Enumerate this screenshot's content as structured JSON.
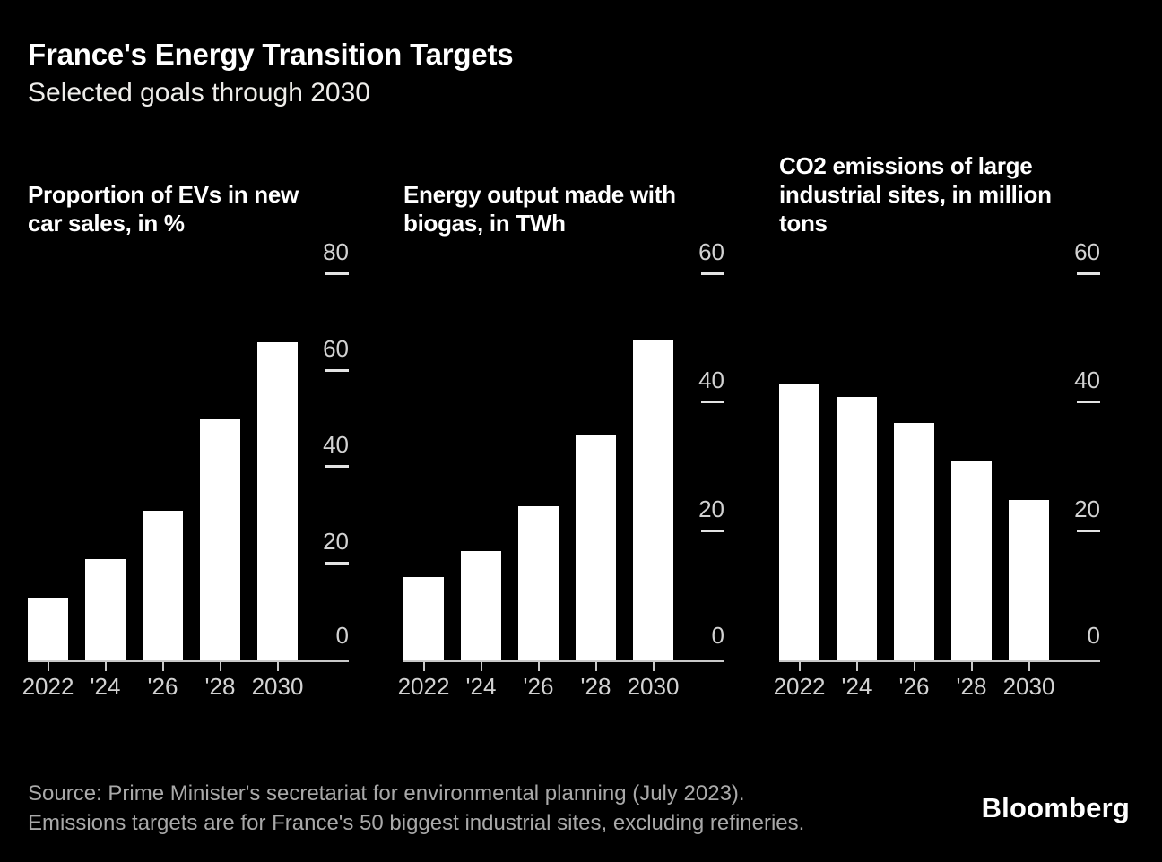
{
  "header": {
    "title": "France's Energy Transition Targets",
    "subtitle": "Selected goals through 2030"
  },
  "chart_data": [
    {
      "type": "bar",
      "title": "Proportion of EVs in new car sales, in %",
      "title_lines": [
        "Proportion of EVs in new",
        "car sales, in %"
      ],
      "categories": [
        "2022",
        "'24",
        "'26",
        "'28",
        "2030"
      ],
      "values": [
        13,
        21,
        31,
        50,
        66
      ],
      "ylim": [
        0,
        80
      ],
      "yticks": [
        0,
        20,
        40,
        60,
        80
      ],
      "grid": false,
      "axis_side": "right",
      "bar_color": "#ffffff"
    },
    {
      "type": "bar",
      "title": "Energy output made with biogas, in TWh",
      "title_lines": [
        "Energy output made with",
        "biogas, in TWh"
      ],
      "categories": [
        "2022",
        "'24",
        "'26",
        "'28",
        "2030"
      ],
      "values": [
        13,
        17,
        24,
        35,
        50
      ],
      "ylim": [
        0,
        60
      ],
      "yticks": [
        0,
        20,
        40,
        60
      ],
      "grid": false,
      "axis_side": "right",
      "bar_color": "#ffffff"
    },
    {
      "type": "bar",
      "title": "CO2 emissions of large industrial sites, in million tons",
      "title_lines": [
        "CO2 emissions of large",
        "industrial sites, in million",
        "tons"
      ],
      "categories": [
        "2022",
        "'24",
        "'26",
        "'28",
        "2030"
      ],
      "values": [
        43,
        41,
        37,
        31,
        25
      ],
      "ylim": [
        0,
        60
      ],
      "yticks": [
        0,
        20,
        40,
        60
      ],
      "grid": false,
      "axis_side": "right",
      "bar_color": "#ffffff"
    }
  ],
  "footer": {
    "source_line1": "Source: Prime Minister's secretariat for environmental planning (July 2023).",
    "source_line2": "Emissions targets are for France's 50 biggest industrial sites, excluding refineries.",
    "logo": "Bloomberg"
  },
  "colors": {
    "background": "#000000",
    "bar": "#ffffff",
    "title_text": "#ffffff",
    "axis_label": "#d2d2d2",
    "axis_line": "#c9c9c9",
    "tick_dash": "#e3e3e3",
    "source_text": "#a9a9a9"
  }
}
